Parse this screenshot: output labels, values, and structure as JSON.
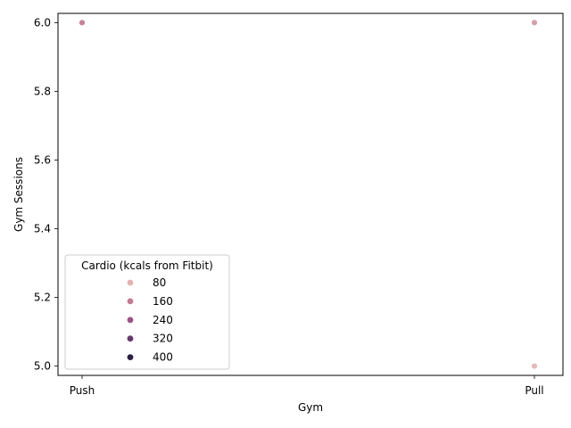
{
  "chart_data": {
    "type": "scatter",
    "xlabel": "Gym",
    "ylabel": "Gym Sessions",
    "x_categories": [
      "Push",
      "Pull"
    ],
    "yticks": [
      5.0,
      5.2,
      5.4,
      5.6,
      5.8,
      6.0
    ],
    "ylim": [
      4.973,
      6.027
    ],
    "grid": false,
    "points": [
      {
        "x": "Push",
        "y": 6.0,
        "cardio": 170
      },
      {
        "x": "Push",
        "y": 6.0,
        "cardio": 150
      },
      {
        "x": "Pull",
        "y": 6.0,
        "cardio": 110
      },
      {
        "x": "Pull",
        "y": 5.0,
        "cardio": 60
      }
    ],
    "legend": {
      "title": "Cardio (kcals from Fitbit)",
      "placement": "lower-left",
      "entries": [
        {
          "label": "80",
          "value": 80,
          "color": "#e3b3b0"
        },
        {
          "label": "160",
          "value": 160,
          "color": "#c27b92"
        },
        {
          "label": "240",
          "value": 240,
          "color": "#9a5485"
        },
        {
          "label": "320",
          "value": 320,
          "color": "#653a6d"
        },
        {
          "label": "400",
          "value": 400,
          "color": "#2c1e3e"
        }
      ]
    },
    "colormap": [
      {
        "value": 0,
        "color": "#efd2cc"
      },
      {
        "value": 80,
        "color": "#e3b3b0"
      },
      {
        "value": 160,
        "color": "#c27b92"
      },
      {
        "value": 240,
        "color": "#9a5485"
      },
      {
        "value": 320,
        "color": "#653a6d"
      },
      {
        "value": 400,
        "color": "#2c1e3e"
      }
    ]
  }
}
